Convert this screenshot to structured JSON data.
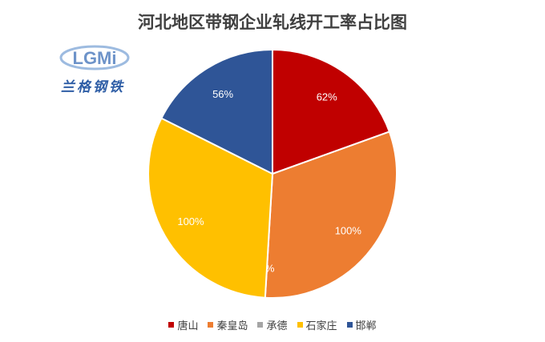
{
  "logo": {
    "mark": "LGMi",
    "subtitle": "兰格钢铁"
  },
  "chart_data": {
    "type": "pie",
    "title": "河北地区带钢企业轧线开工率占比图",
    "categories": [
      "唐山",
      "秦皇岛",
      "承德",
      "石家庄",
      "邯郸"
    ],
    "values": [
      62,
      100,
      0,
      100,
      56
    ],
    "data_labels": [
      "62%",
      "100%",
      "0%",
      "100%",
      "56%"
    ],
    "colors": [
      "#c00000",
      "#ed7d31",
      "#a5a5a5",
      "#ffc000",
      "#2f5597"
    ],
    "legend": "bottom"
  }
}
